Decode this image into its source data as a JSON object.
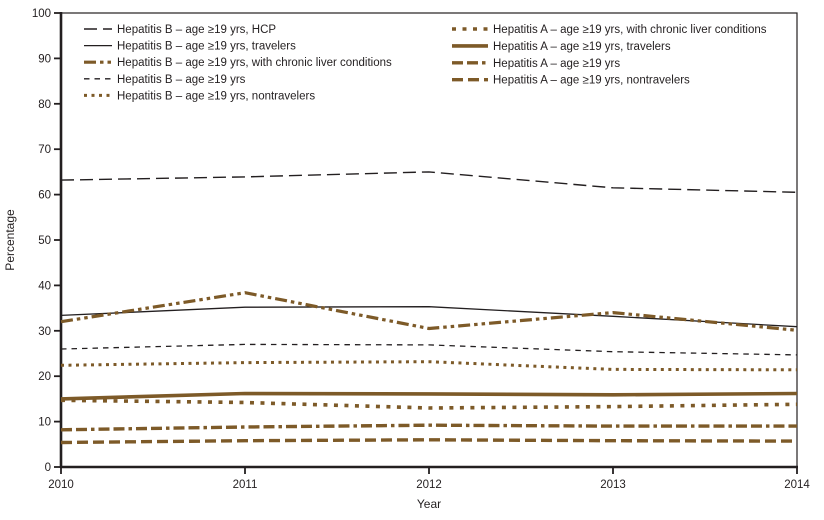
{
  "figure": {
    "ylabel": "Percentage",
    "xlabel": "Year",
    "colors": {
      "brown": "#7d5a28",
      "black": "#231f20",
      "background": "#ffffff"
    }
  },
  "chart_data": {
    "type": "line",
    "x": [
      "2010",
      "2011",
      "2012",
      "2013",
      "2014"
    ],
    "xlabel": "Year",
    "ylabel": "Percentage",
    "ylim": [
      0,
      100
    ],
    "y_ticks": [
      0,
      10,
      20,
      30,
      40,
      50,
      60,
      70,
      80,
      90,
      100
    ],
    "grid": false,
    "legend_position": "inside-top, two columns",
    "series": [
      {
        "name": "Hepatitis B – age ≥19 yrs, HCP",
        "values": [
          63.2,
          63.9,
          65.0,
          61.5,
          60.5
        ],
        "color": "#231f20",
        "width": 1.4,
        "dash": "13,6",
        "legend_column": "left"
      },
      {
        "name": "Hepatitis B – age ≥19 yrs, travelers",
        "values": [
          33.4,
          35.2,
          35.3,
          33.2,
          30.9
        ],
        "color": "#231f20",
        "width": 1.3,
        "dash": "",
        "legend_column": "left"
      },
      {
        "name": "Hepatitis B – age ≥19 yrs, with chronic liver conditions",
        "values": [
          32.0,
          38.4,
          30.5,
          34.0,
          30.1
        ],
        "color": "#7d5a28",
        "width": 3.2,
        "dash": "12,4,3.5,4,3.5,4",
        "legend_column": "left"
      },
      {
        "name": "Hepatitis B – age ≥19 yrs",
        "values": [
          26.0,
          27.0,
          26.9,
          25.4,
          24.7
        ],
        "color": "#231f20",
        "width": 1.3,
        "dash": "5.5,5",
        "legend_column": "left"
      },
      {
        "name": "Hepatitis B – age ≥19 yrs, nontravelers",
        "values": [
          22.4,
          23.0,
          23.2,
          21.5,
          21.4
        ],
        "color": "#7d5a28",
        "width": 3.0,
        "dash": "3,4.5",
        "legend_column": "left"
      },
      {
        "name": "Hepatitis A – age ≥19 yrs, with chronic liver conditions",
        "values": [
          14.7,
          14.2,
          13.0,
          13.3,
          13.8
        ],
        "color": "#7d5a28",
        "width": 3.6,
        "dash": "4,6.5",
        "legend_column": "right"
      },
      {
        "name": "Hepatitis A – age ≥19 yrs, travelers",
        "values": [
          15.0,
          16.2,
          16.1,
          15.9,
          16.2
        ],
        "color": "#7d5a28",
        "width": 3.6,
        "dash": "",
        "legend_column": "right"
      },
      {
        "name": "Hepatitis A – age ≥19 yrs",
        "values": [
          8.2,
          8.8,
          9.2,
          9.0,
          9.0
        ],
        "color": "#7d5a28",
        "width": 3.4,
        "dash": "11,4,11,4,3.5,4",
        "legend_column": "right"
      },
      {
        "name": "Hepatitis A – age ≥19 yrs, nontravelers",
        "values": [
          5.4,
          5.8,
          6.0,
          5.8,
          5.7
        ],
        "color": "#7d5a28",
        "width": 3.4,
        "dash": "11,5",
        "legend_column": "right"
      }
    ]
  }
}
